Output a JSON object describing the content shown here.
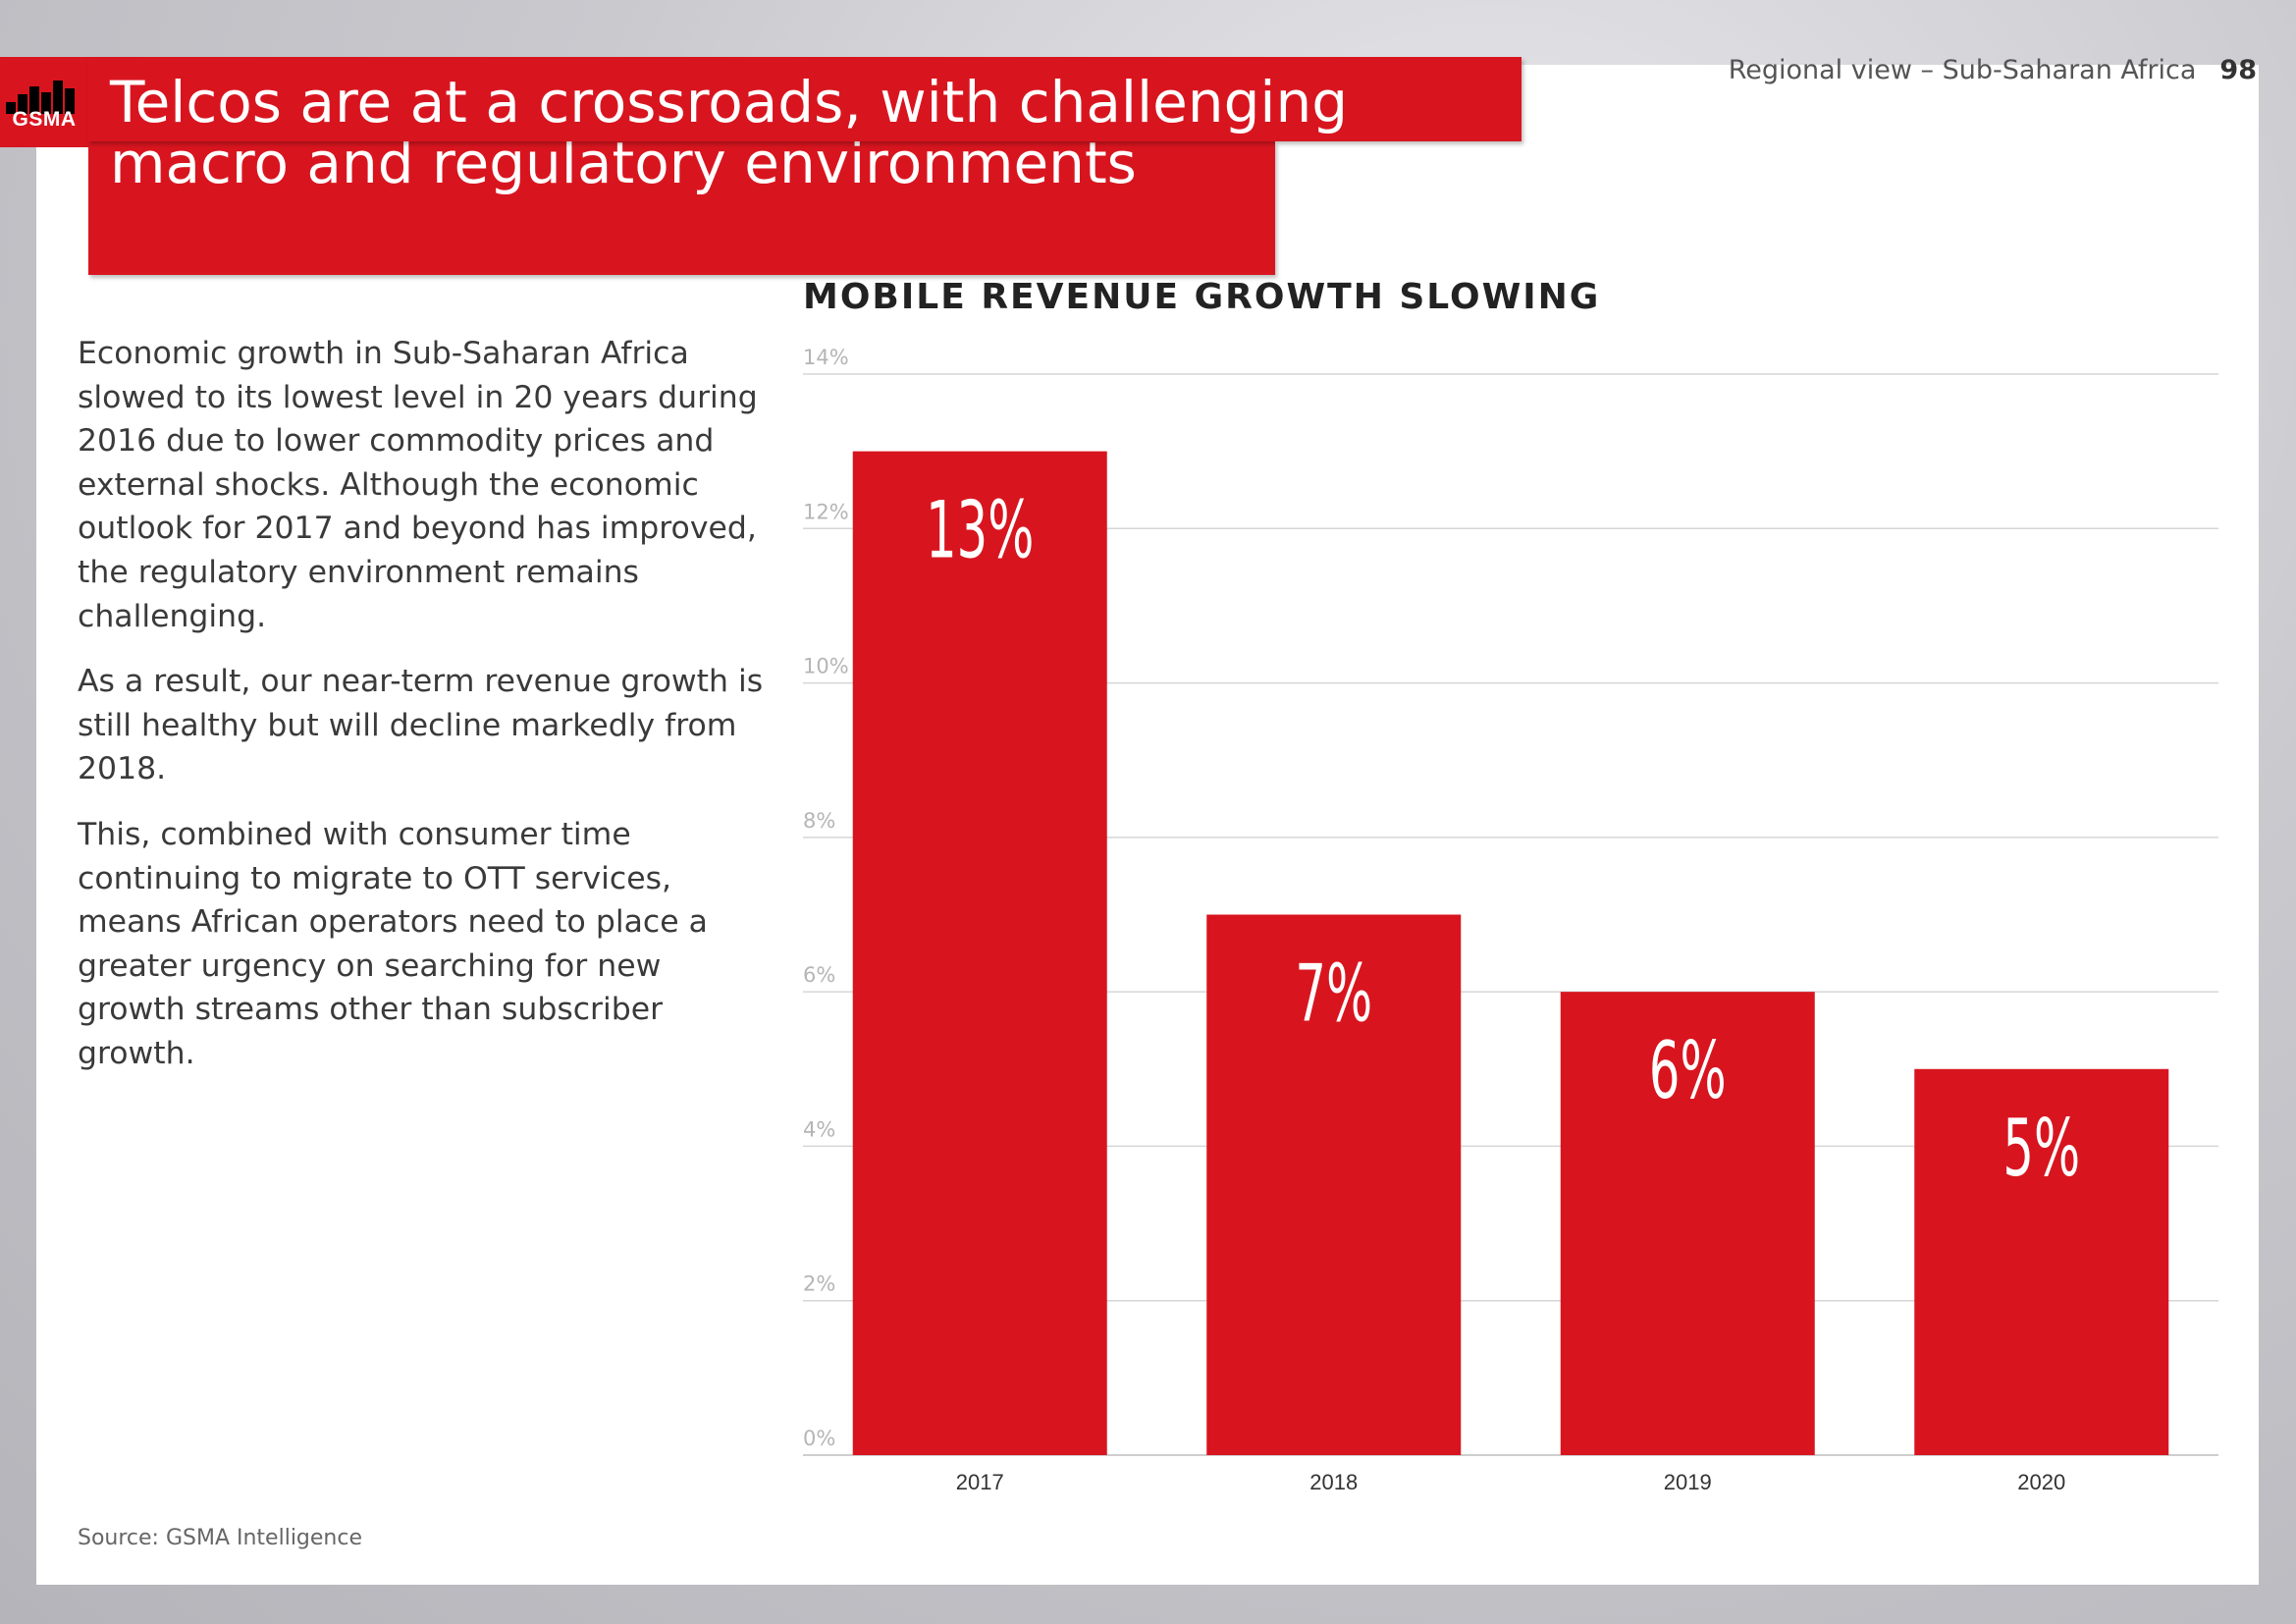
{
  "header": {
    "brand": "GSMA",
    "title_line1": "Telcos are at a crossroads, with challenging",
    "title_line2": "macro and regulatory environments",
    "section": "Regional view – Sub-Saharan Africa",
    "page_number": "98"
  },
  "body": {
    "paragraphs": [
      "Economic growth in Sub-Saharan Africa slowed to its lowest level in 20 years during 2016 due to lower commodity prices and external shocks. Although the economic outlook for 2017 and beyond has improved, the regulatory environment remains challenging.",
      "As a result, our near-term revenue growth is still healthy but will decline markedly from 2018.",
      "This, combined with consumer time continuing to migrate to OTT services, means African operators need to place a greater urgency on searching for new growth streams other than subscriber growth."
    ],
    "source": "Source: GSMA Intelligence"
  },
  "colors": {
    "brand_red": "#d8151f",
    "grid": "#d6d6d6",
    "tick": "#b5b5b5"
  },
  "chart_data": {
    "type": "bar",
    "title": "MOBILE REVENUE GROWTH SLOWING",
    "categories": [
      "2017",
      "2018",
      "2019",
      "2020"
    ],
    "values": [
      13,
      7,
      6,
      5
    ],
    "data_labels": [
      "13%",
      "7%",
      "6%",
      "5%"
    ],
    "y_ticks": [
      "0%",
      "2%",
      "4%",
      "6%",
      "8%",
      "10%",
      "12%",
      "14%"
    ],
    "ylim": [
      0,
      14
    ],
    "grid": true,
    "legend": "none"
  }
}
